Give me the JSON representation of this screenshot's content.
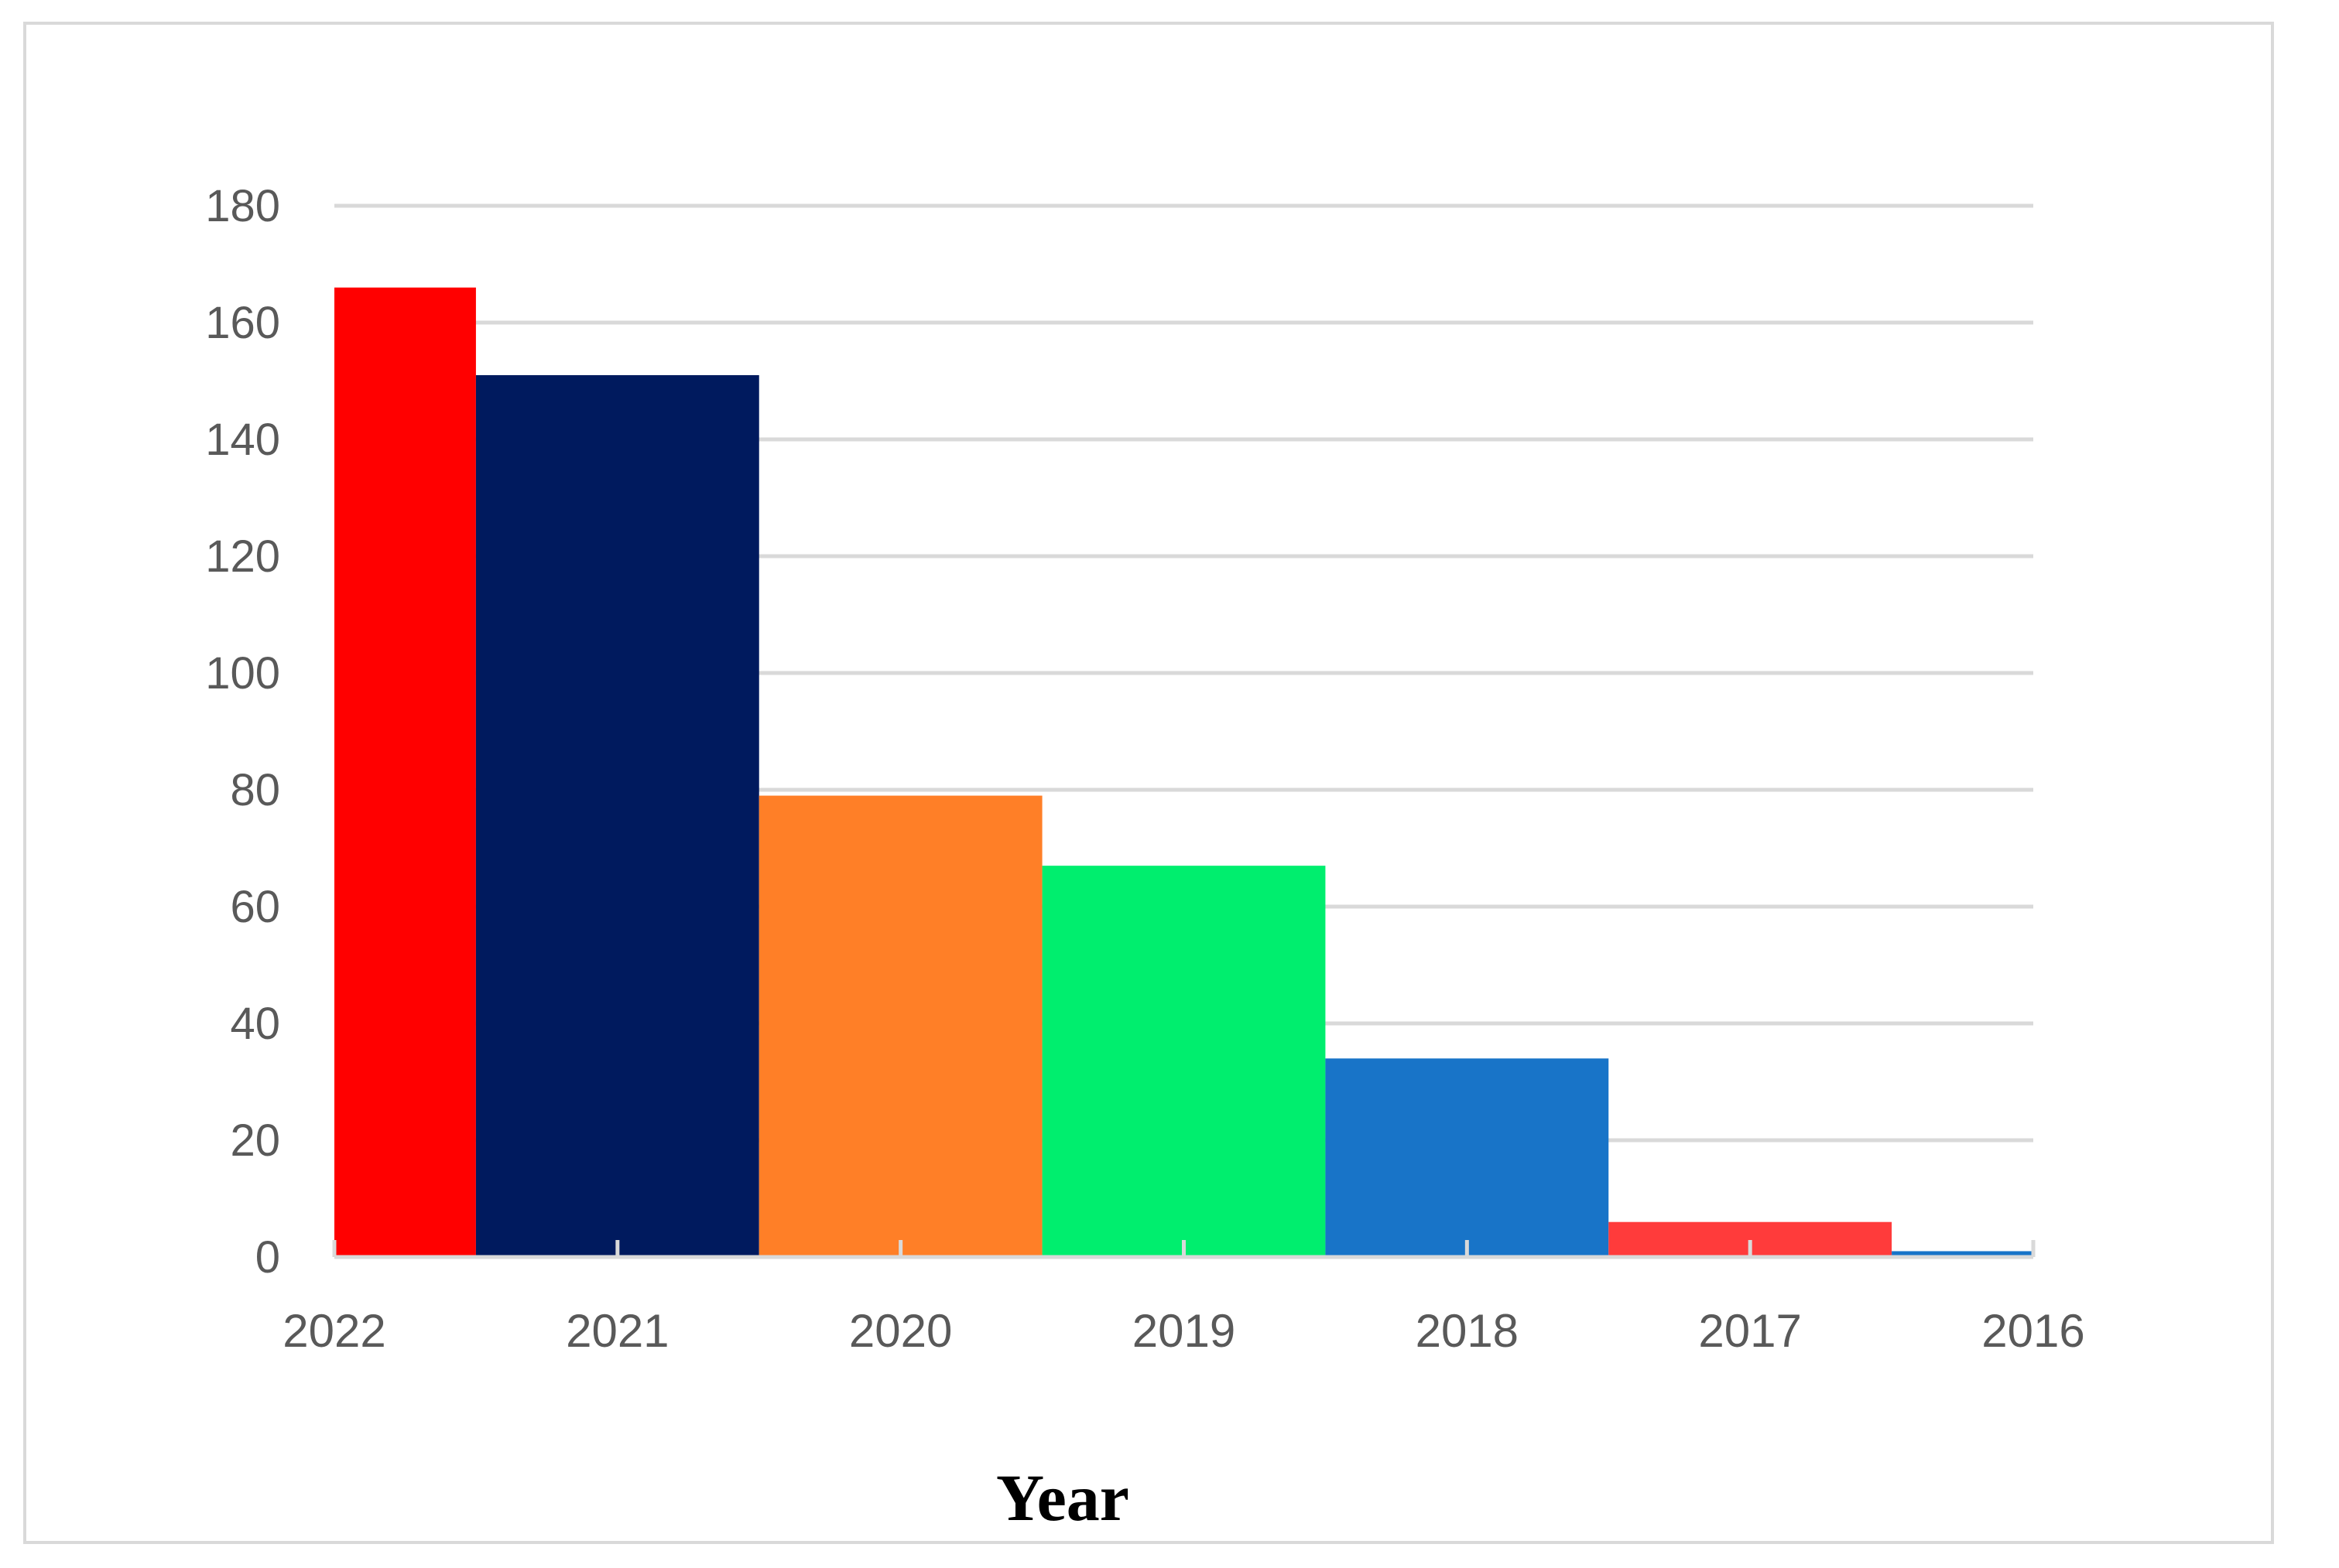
{
  "chart_data": {
    "type": "bar",
    "title": "",
    "xlabel": "Year",
    "ylabel": "",
    "categories": [
      "2022",
      "2021",
      "2020",
      "2019",
      "2018",
      "2017",
      "2016"
    ],
    "values": [
      166,
      151,
      79,
      67,
      34,
      6,
      1
    ],
    "colors": [
      "#ff0000",
      "#001a5e",
      "#ff7f27",
      "#00ee6e",
      "#1874c8",
      "#ff3b3b",
      "#1874c8"
    ],
    "ylim": [
      0,
      180
    ],
    "yticks": [
      0,
      20,
      40,
      60,
      80,
      100,
      120,
      140,
      160,
      180
    ],
    "grid": true,
    "legend": "none"
  }
}
